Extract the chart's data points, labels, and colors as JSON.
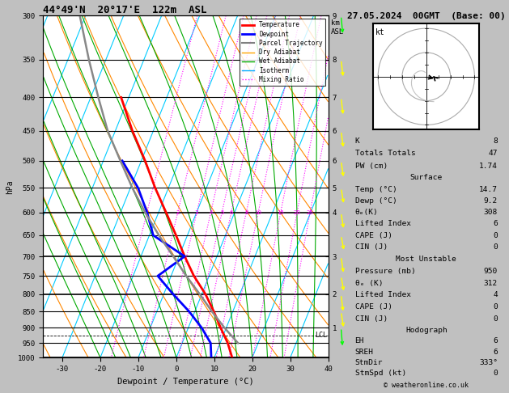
{
  "title_left": "44°49'N  20°17'E  122m  ASL",
  "title_right": "27.05.2024  00GMT  (Base: 00)",
  "xlabel": "Dewpoint / Temperature (°C)",
  "ylabel_left": "hPa",
  "pressure_levels": [
    300,
    350,
    400,
    450,
    500,
    550,
    600,
    650,
    700,
    750,
    800,
    850,
    900,
    950,
    1000
  ],
  "xmin": -35,
  "xmax": 40,
  "temp_profile_p": [
    1000,
    950,
    900,
    850,
    800,
    750,
    700,
    650,
    600,
    550,
    500,
    450,
    400
  ],
  "temp_profile_t": [
    14.7,
    12.0,
    8.5,
    5.0,
    1.0,
    -4.0,
    -8.5,
    -13.0,
    -18.0,
    -23.5,
    -29.0,
    -35.5,
    -42.0
  ],
  "dewp_profile_p": [
    1000,
    950,
    900,
    850,
    800,
    750,
    700,
    650,
    600,
    550,
    500
  ],
  "dewp_profile_t": [
    9.2,
    7.5,
    3.5,
    -1.5,
    -7.5,
    -13.5,
    -8.5,
    -19.0,
    -23.0,
    -28.0,
    -35.0
  ],
  "parcel_p": [
    950,
    900,
    850,
    800,
    750,
    700,
    650,
    600,
    550,
    500,
    450,
    400,
    350,
    300
  ],
  "parcel_t": [
    14.7,
    9.5,
    4.5,
    -0.5,
    -6.0,
    -11.5,
    -17.5,
    -23.5,
    -29.5,
    -35.5,
    -42.0,
    -48.0,
    -54.5,
    -61.5
  ],
  "lcl_pressure": 925,
  "km_ticks": {
    "300": "9",
    "350": "8",
    "400": "7",
    "450": "6",
    "500": "6",
    "550": "5",
    "600": "4",
    "700": "3",
    "800": "2",
    "900": "1"
  },
  "mixing_ratio_values": [
    1,
    2,
    3,
    4,
    5,
    6,
    8,
    10,
    15,
    20,
    25
  ],
  "right_panel": {
    "K": 8,
    "TT": 47,
    "PW": 1.74,
    "surf_temp": "14.7",
    "surf_dewp": "9.2",
    "surf_thetae": 308,
    "surf_li": 6,
    "surf_cape": 0,
    "surf_cin": 0,
    "mu_pressure": 950,
    "mu_thetae": 312,
    "mu_li": 4,
    "mu_cape": 0,
    "mu_cin": 0,
    "hodo_eh": 6,
    "hodo_sreh": 6,
    "hodo_stmdir": "333°",
    "hodo_stmspd": 0
  },
  "legend_items": [
    {
      "label": "Temperature",
      "color": "#ff0000",
      "lw": 2.0,
      "ls": "-"
    },
    {
      "label": "Dewpoint",
      "color": "#0000ff",
      "lw": 2.0,
      "ls": "-"
    },
    {
      "label": "Parcel Trajectory",
      "color": "#808080",
      "lw": 1.5,
      "ls": "-"
    },
    {
      "label": "Dry Adiabat",
      "color": "#ffa500",
      "lw": 1.0,
      "ls": "-"
    },
    {
      "label": "Wet Adiabat",
      "color": "#00aa00",
      "lw": 1.0,
      "ls": "-"
    },
    {
      "label": "Isotherm",
      "color": "#00aaff",
      "lw": 1.0,
      "ls": "-"
    },
    {
      "label": "Mixing Ratio",
      "color": "#ff00ff",
      "lw": 1.0,
      "ls": ":"
    }
  ],
  "wind_barb_colors": {
    "300": "#00ff00",
    "350": "#ffff00",
    "400": "#ffff00",
    "450": "#ffff00",
    "500": "#ffff00",
    "550": "#ffff00",
    "600": "#ffff00",
    "650": "#ffff00",
    "700": "#ffff00",
    "750": "#ffff00",
    "800": "#ffff00",
    "850": "#ffff00",
    "900": "#00ff00",
    "950": "#00ff00",
    "1000": "#00ff00"
  }
}
